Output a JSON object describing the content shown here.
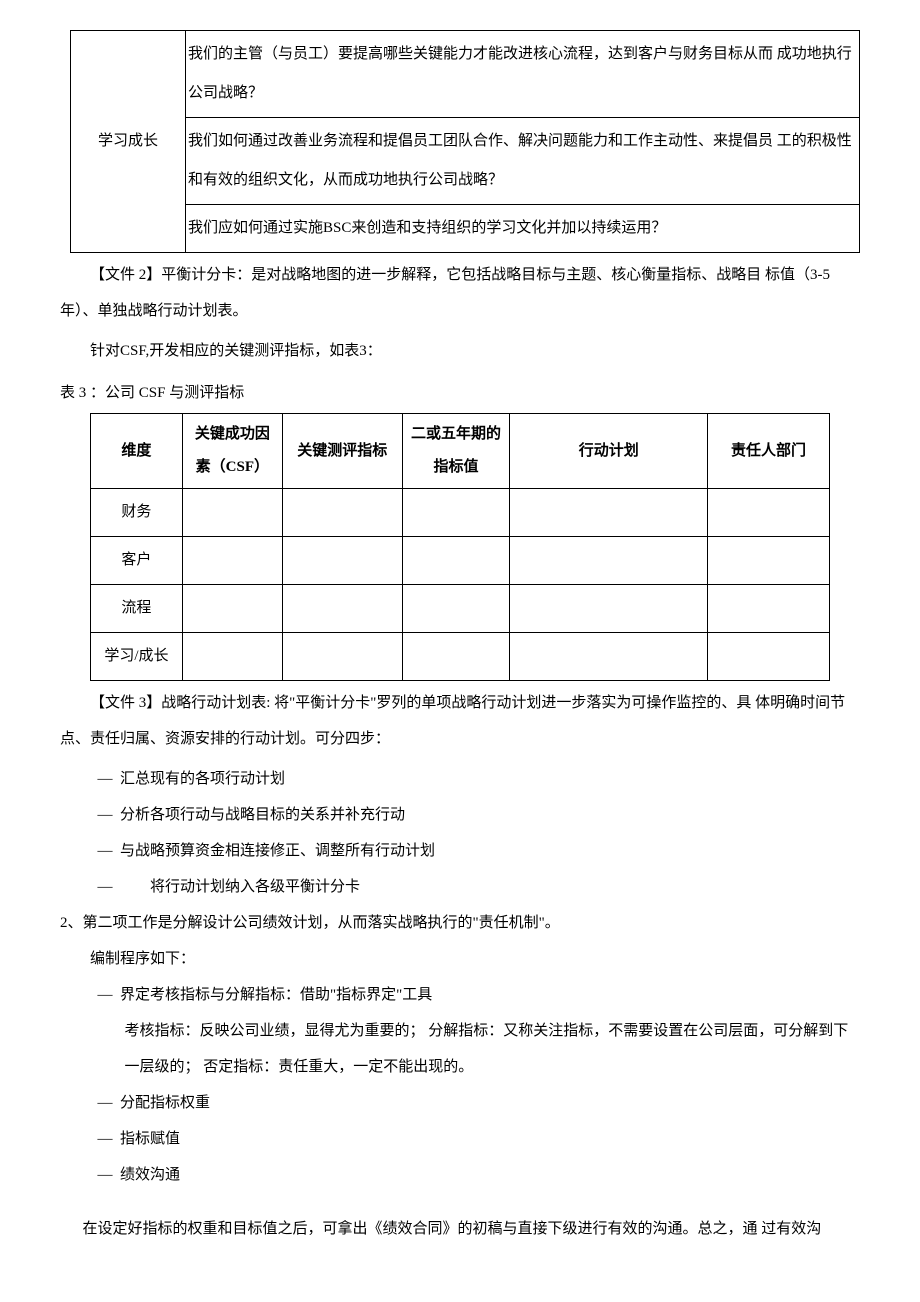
{
  "table1": {
    "rowLabel": "学习成长",
    "rows": [
      "我们的主管（与员工）要提高哪些关键能力才能改进核心流程，达到客户与财务目标从而 成功地执行公司战略？",
      "我们如何通过改善业务流程和提倡员工团队合作、解决问题能力和工作主动性、来提倡员 工的积极性和有效的组织文化，从而成功地执行公司战略？",
      "我们应如何通过实施BSC来创造和支持组织的学习文化并加以持续运用？"
    ]
  },
  "para1": "【文件 2】平衡计分卡：是对战略地图的进一步解释，它包括战略目标与主题、核心衡量指标、战略目 标值（3-5 年）、单独战略行动计划表。",
  "para2": "针对CSF,开发相应的关键测评指标，如表3：",
  "table3Caption": "表 3 ：公司 CSF 与测评指标",
  "table3": {
    "headers": [
      "维度",
      "关键成功因素（CSF）",
      "关键测评指标",
      "二或五年期的指标值",
      "行动计划",
      "责任人部门"
    ],
    "rows": [
      "财务",
      "客户",
      "流程",
      "学习/成长"
    ]
  },
  "para3": "【文件 3】战略行动计划表: 将\"平衡计分卡\"罗列的单项战略行动计划进一步落实为可操作监控的、具 体明确时间节点、责任归属、资源安排的行动计划。可分四步：",
  "list1": [
    "汇总现有的各项行动计划",
    "分析各项行动与战略目标的关系并补充行动",
    "与战略预算资金相连接修正、调整所有行动计划",
    "将行动计划纳入各级平衡计分卡"
  ],
  "numItem": "2、第二项工作是分解设计公司绩效计划，从而落实战略执行的\"责任机制\"。",
  "indentLine": "编制程序如下：",
  "list2a": "界定考核指标与分解指标：借助\"指标界定\"工具",
  "list2aSub": "考核指标：反映公司业绩，显得尤为重要的； 分解指标：又称关注指标，不需要设置在公司层面，可分解到下一层级的； 否定指标：责任重大，一定不能出现的。",
  "list2b": "分配指标权重",
  "list2c": "指标赋值",
  "list2d": "绩效沟通",
  "finalPara": "在设定好指标的权重和目标值之后，可拿出《绩效合同》的初稿与直接下级进行有效的沟通。总之，通 过有效沟"
}
